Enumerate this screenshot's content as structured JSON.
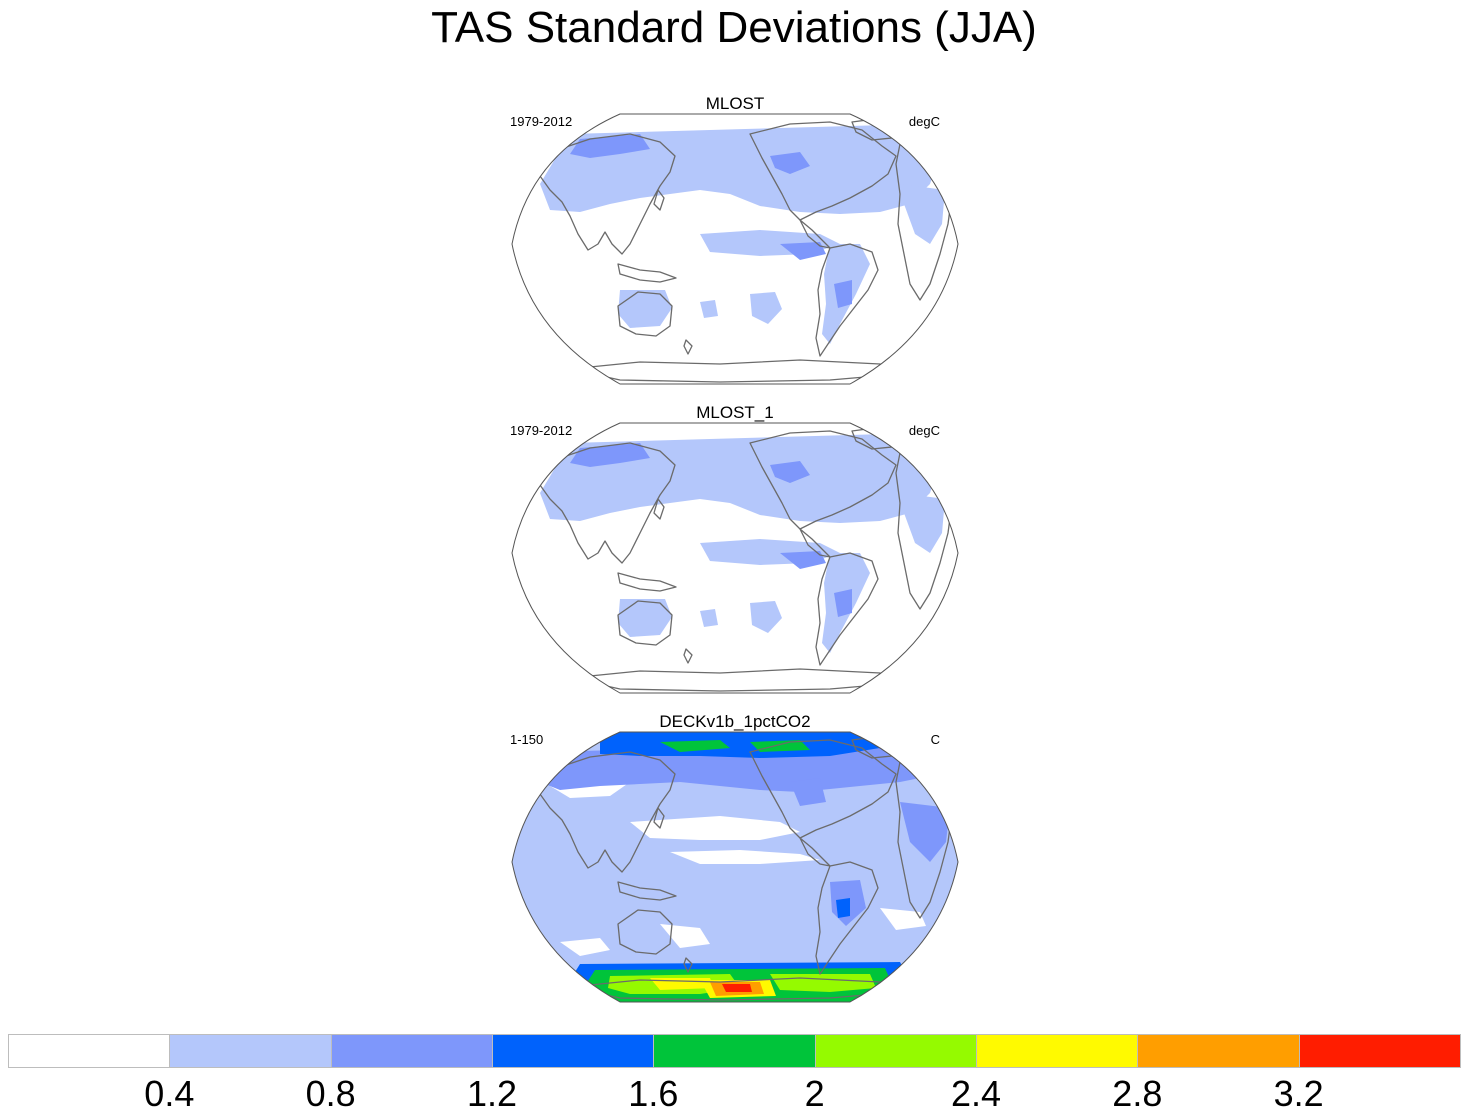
{
  "title": "TAS Standard Deviations (JJA)",
  "panels": [
    {
      "name": "MLOST",
      "left_label": "1979-2012",
      "right_label": "degC",
      "variant": "obs"
    },
    {
      "name": "MLOST_1",
      "left_label": "1979-2012",
      "right_label": "degC",
      "variant": "obs"
    },
    {
      "name": "DECKv1b_1pctCO2",
      "left_label": "1-150",
      "right_label": "C",
      "variant": "model"
    }
  ],
  "colorbar": {
    "levels": [
      "0.4",
      "0.8",
      "1.2",
      "1.6",
      "2",
      "2.4",
      "2.8",
      "3.2"
    ],
    "colors": [
      "#ffffff",
      "#b4c7fb",
      "#7e97fb",
      "#0062fc",
      "#00c43a",
      "#95fa00",
      "#fffa00",
      "#ff9e00",
      "#ff1d00"
    ]
  },
  "palette": {
    "coast": "#6b6b6b",
    "frame": "#555555"
  }
}
